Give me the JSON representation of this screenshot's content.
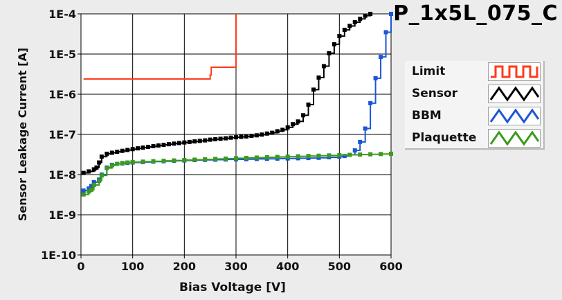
{
  "chart_data": {
    "type": "line",
    "title": "P_1x5L_075_C",
    "xlabel": "Bias Voltage [V]",
    "ylabel": "Sensor Leakage Current [A]",
    "xlim": [
      0,
      600
    ],
    "ylim": [
      1e-10,
      0.0001
    ],
    "y_scale": "log",
    "grid": true,
    "legend_position": "right",
    "x_ticks": [
      0,
      100,
      200,
      300,
      400,
      500,
      600
    ],
    "x_tick_labels": [
      "0",
      "100",
      "200",
      "300",
      "400",
      "500",
      "600"
    ],
    "y_ticks": [
      1e-10,
      1e-09,
      1e-08,
      1e-07,
      1e-06,
      1e-05,
      0.0001
    ],
    "y_tick_labels": [
      "1E-10",
      "1E-9",
      "1E-8",
      "1E-7",
      "1E-6",
      "1E-5",
      "1E-4"
    ],
    "series": [
      {
        "name": "Limit",
        "color": "#ff3b1a",
        "step": true,
        "marker": false,
        "points": [
          [
            5,
            2.4e-06
          ],
          [
            250,
            2.4e-06
          ],
          [
            250,
            3e-06
          ],
          [
            252,
            4.7e-06
          ],
          [
            300,
            4.7e-06
          ],
          [
            300,
            0.0001
          ]
        ]
      },
      {
        "name": "Sensor",
        "color": "#000000",
        "step": true,
        "marker": true,
        "points": [
          [
            5,
            1.1e-08
          ],
          [
            15,
            1.2e-08
          ],
          [
            25,
            1.35e-08
          ],
          [
            30,
            1.5e-08
          ],
          [
            35,
            2e-08
          ],
          [
            40,
            2.8e-08
          ],
          [
            50,
            3.3e-08
          ],
          [
            60,
            3.5e-08
          ],
          [
            70,
            3.7e-08
          ],
          [
            80,
            3.9e-08
          ],
          [
            90,
            4.1e-08
          ],
          [
            100,
            4.3e-08
          ],
          [
            110,
            4.5e-08
          ],
          [
            120,
            4.7e-08
          ],
          [
            130,
            4.9e-08
          ],
          [
            140,
            5.1e-08
          ],
          [
            150,
            5.3e-08
          ],
          [
            160,
            5.5e-08
          ],
          [
            170,
            5.7e-08
          ],
          [
            180,
            5.9e-08
          ],
          [
            190,
            6.1e-08
          ],
          [
            200,
            6.3e-08
          ],
          [
            210,
            6.5e-08
          ],
          [
            220,
            6.7e-08
          ],
          [
            230,
            6.9e-08
          ],
          [
            240,
            7.1e-08
          ],
          [
            250,
            7.4e-08
          ],
          [
            260,
            7.6e-08
          ],
          [
            270,
            7.8e-08
          ],
          [
            280,
            8e-08
          ],
          [
            290,
            8.3e-08
          ],
          [
            300,
            8.5e-08
          ],
          [
            310,
            8.7e-08
          ],
          [
            320,
            8.9e-08
          ],
          [
            330,
            9.2e-08
          ],
          [
            340,
            9.5e-08
          ],
          [
            350,
            9.9e-08
          ],
          [
            360,
            1.05e-07
          ],
          [
            370,
            1.1e-07
          ],
          [
            380,
            1.2e-07
          ],
          [
            390,
            1.3e-07
          ],
          [
            400,
            1.5e-07
          ],
          [
            410,
            1.8e-07
          ],
          [
            420,
            2.1e-07
          ],
          [
            430,
            3e-07
          ],
          [
            440,
            5.5e-07
          ],
          [
            450,
            1.3e-06
          ],
          [
            460,
            2.6e-06
          ],
          [
            470,
            5e-06
          ],
          [
            480,
            1.05e-05
          ],
          [
            490,
            1.75e-05
          ],
          [
            500,
            2.8e-05
          ],
          [
            510,
            4e-05
          ],
          [
            520,
            5e-05
          ],
          [
            530,
            6.2e-05
          ],
          [
            540,
            7.5e-05
          ],
          [
            550,
            9e-05
          ],
          [
            560,
            0.0001
          ]
        ]
      },
      {
        "name": "BBM",
        "color": "#1a56d6",
        "step": true,
        "marker": true,
        "points": [
          [
            5,
            4e-09
          ],
          [
            15,
            4.5e-09
          ],
          [
            20,
            5.2e-09
          ],
          [
            25,
            6.5e-09
          ],
          [
            35,
            7.5e-09
          ],
          [
            40,
            1e-08
          ],
          [
            50,
            1.5e-08
          ],
          [
            60,
            1.75e-08
          ],
          [
            70,
            1.85e-08
          ],
          [
            80,
            1.9e-08
          ],
          [
            90,
            1.95e-08
          ],
          [
            100,
            2e-08
          ],
          [
            120,
            2.05e-08
          ],
          [
            140,
            2.1e-08
          ],
          [
            160,
            2.15e-08
          ],
          [
            180,
            2.2e-08
          ],
          [
            200,
            2.25e-08
          ],
          [
            220,
            2.3e-08
          ],
          [
            240,
            2.32e-08
          ],
          [
            260,
            2.35e-08
          ],
          [
            280,
            2.38e-08
          ],
          [
            300,
            2.4e-08
          ],
          [
            320,
            2.42e-08
          ],
          [
            340,
            2.45e-08
          ],
          [
            360,
            2.47e-08
          ],
          [
            380,
            2.5e-08
          ],
          [
            400,
            2.52e-08
          ],
          [
            420,
            2.55e-08
          ],
          [
            440,
            2.58e-08
          ],
          [
            460,
            2.62e-08
          ],
          [
            480,
            2.7e-08
          ],
          [
            500,
            2.8e-08
          ],
          [
            510,
            2.9e-08
          ],
          [
            520,
            3.1e-08
          ],
          [
            530,
            4e-08
          ],
          [
            540,
            6.5e-08
          ],
          [
            550,
            1.4e-07
          ],
          [
            560,
            6e-07
          ],
          [
            570,
            2.5e-06
          ],
          [
            580,
            8.5e-06
          ],
          [
            590,
            3.5e-05
          ],
          [
            600,
            0.0001
          ]
        ]
      },
      {
        "name": "Plaquette",
        "color": "#3c9a1e",
        "step": true,
        "marker": true,
        "points": [
          [
            5,
            3.2e-09
          ],
          [
            15,
            3.8e-09
          ],
          [
            20,
            4.2e-09
          ],
          [
            25,
            5.5e-09
          ],
          [
            35,
            7e-09
          ],
          [
            40,
            9.5e-09
          ],
          [
            50,
            1.45e-08
          ],
          [
            60,
            1.7e-08
          ],
          [
            70,
            1.85e-08
          ],
          [
            80,
            1.95e-08
          ],
          [
            90,
            2e-08
          ],
          [
            100,
            2.05e-08
          ],
          [
            120,
            2.1e-08
          ],
          [
            140,
            2.15e-08
          ],
          [
            160,
            2.2e-08
          ],
          [
            180,
            2.25e-08
          ],
          [
            200,
            2.3e-08
          ],
          [
            220,
            2.35e-08
          ],
          [
            240,
            2.4e-08
          ],
          [
            260,
            2.45e-08
          ],
          [
            280,
            2.5e-08
          ],
          [
            300,
            2.55e-08
          ],
          [
            320,
            2.6e-08
          ],
          [
            340,
            2.65e-08
          ],
          [
            360,
            2.7e-08
          ],
          [
            380,
            2.75e-08
          ],
          [
            400,
            2.8e-08
          ],
          [
            420,
            2.85e-08
          ],
          [
            440,
            2.9e-08
          ],
          [
            460,
            2.95e-08
          ],
          [
            480,
            3e-08
          ],
          [
            500,
            3.05e-08
          ],
          [
            520,
            3.1e-08
          ],
          [
            540,
            3.15e-08
          ],
          [
            560,
            3.2e-08
          ],
          [
            580,
            3.25e-08
          ],
          [
            600,
            3.3e-08
          ]
        ]
      }
    ]
  }
}
